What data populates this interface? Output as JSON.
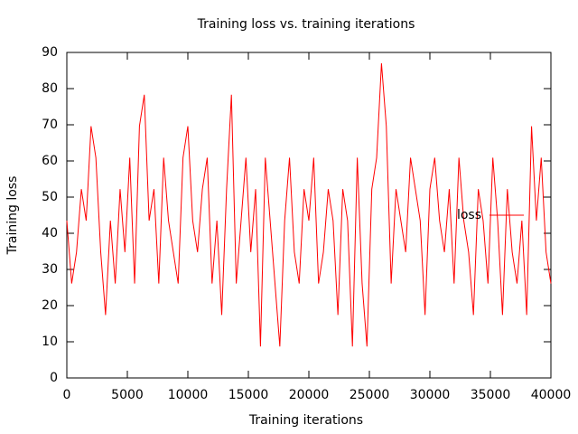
{
  "chart_data": {
    "type": "line",
    "title": "Training loss vs. training iterations",
    "x_label": "Training iterations",
    "y_label": "Training loss",
    "x": [
      0,
      400,
      800,
      1200,
      1600,
      2000,
      2400,
      2800,
      3200,
      3600,
      4000,
      4400,
      4800,
      5200,
      5600,
      6000,
      6400,
      6800,
      7200,
      7600,
      8000,
      8400,
      8800,
      9200,
      9600,
      10000,
      10400,
      10800,
      11200,
      11600,
      12000,
      12400,
      12800,
      13200,
      13600,
      14000,
      14400,
      14800,
      15200,
      15600,
      16000,
      16400,
      16800,
      17200,
      17600,
      18000,
      18400,
      18800,
      19200,
      19600,
      20000,
      20400,
      20800,
      21200,
      21600,
      22000,
      22400,
      22800,
      23200,
      23600,
      24000,
      24400,
      24800,
      25200,
      25600,
      26000,
      26400,
      26800,
      27200,
      27600,
      28000,
      28400,
      28800,
      29200,
      29600,
      30000,
      30400,
      30800,
      31200,
      31600,
      32000,
      32400,
      32800,
      33200,
      33600,
      34000,
      34400,
      34800,
      35200,
      35600,
      36000,
      36400,
      36800,
      37200,
      37600,
      38000,
      38400,
      38800,
      39200,
      39600,
      40000
    ],
    "series": [
      {
        "name": "loss",
        "color": "#ff0000",
        "values": [
          43.5,
          26.1,
          34.8,
          52.2,
          43.5,
          69.6,
          60.9,
          34.8,
          17.4,
          43.5,
          26.1,
          52.2,
          34.8,
          60.9,
          26.1,
          69.6,
          78.3,
          43.5,
          52.2,
          26.1,
          60.9,
          43.5,
          34.8,
          26.1,
          60.9,
          69.6,
          43.5,
          34.8,
          52.2,
          60.9,
          26.1,
          43.5,
          17.4,
          52.2,
          78.3,
          26.1,
          43.5,
          60.9,
          34.8,
          52.2,
          8.7,
          60.9,
          43.5,
          26.1,
          8.7,
          43.5,
          60.9,
          34.8,
          26.1,
          52.2,
          43.5,
          60.9,
          26.1,
          34.8,
          52.2,
          43.5,
          17.4,
          52.2,
          43.5,
          8.7,
          60.9,
          26.1,
          8.7,
          52.2,
          60.9,
          87,
          69.6,
          26.1,
          52.2,
          43.5,
          34.8,
          60.9,
          52.2,
          43.5,
          17.4,
          52.2,
          60.9,
          43.5,
          34.8,
          52.2,
          26.1,
          60.9,
          43.5,
          34.8,
          17.4,
          52.2,
          43.5,
          26.1,
          60.9,
          43.5,
          17.4,
          52.2,
          34.8,
          26.1,
          43.5,
          17.4,
          69.6,
          43.5,
          60.9,
          34.8,
          26.1
        ]
      }
    ],
    "xlim": [
      0,
      40000
    ],
    "xticks": [
      0,
      5000,
      10000,
      15000,
      20000,
      25000,
      30000,
      35000,
      40000
    ],
    "ylim": [
      0,
      90
    ],
    "yticks": [
      0,
      10,
      20,
      30,
      40,
      50,
      60,
      70,
      80,
      90
    ],
    "grid": false,
    "legend": "right"
  }
}
